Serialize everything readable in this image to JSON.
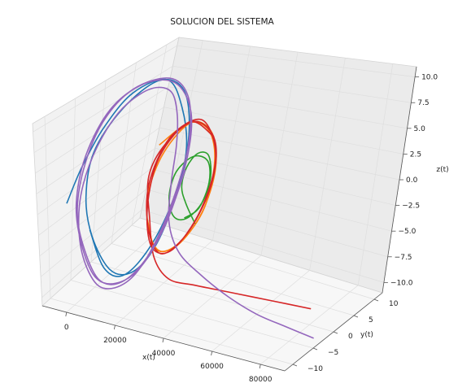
{
  "chart_data": {
    "type": "line",
    "projection": "3d",
    "title": "SOLUCION DEL SISTEMA",
    "xlabel": "x(t)",
    "ylabel": "y(t)",
    "zlabel": "z(t)",
    "xlim": [
      -10000,
      90000
    ],
    "ylim": [
      -12,
      12
    ],
    "zlim": [
      -11,
      11
    ],
    "xticks": [
      "0",
      "20000",
      "40000",
      "60000",
      "80000"
    ],
    "yticks": [
      "−10",
      "−5",
      "0",
      "5",
      "10"
    ],
    "zticks": [
      "−10.0",
      "−7.5",
      "−5.0",
      "−2.5",
      "0.0",
      "2.5",
      "5.0",
      "7.5",
      "10.0"
    ],
    "grid": true,
    "series": [
      {
        "color": "#1f77b4",
        "points": [
          [
            0,
            -11,
            1.5
          ],
          [
            2000,
            -9,
            5
          ],
          [
            4000,
            -6,
            8.5
          ],
          [
            6000,
            -2,
            11
          ],
          [
            8000,
            3,
            10.5
          ],
          [
            9000,
            6,
            6
          ],
          [
            9500,
            8,
            0
          ],
          [
            9000,
            7,
            -6
          ],
          [
            8000,
            4,
            -10
          ],
          [
            6000,
            0,
            -11
          ],
          [
            4000,
            -4,
            -9
          ],
          [
            2000,
            -7,
            -4
          ],
          [
            1500,
            -8,
            1
          ],
          [
            2500,
            -7,
            6
          ],
          [
            4500,
            -3,
            9.5
          ],
          [
            7000,
            2,
            10.8
          ],
          [
            8800,
            6,
            8
          ],
          [
            9500,
            8,
            2
          ],
          [
            9200,
            7.5,
            -4
          ],
          [
            7800,
            4,
            -9
          ],
          [
            5500,
            -1,
            -10.8
          ],
          [
            3500,
            -5,
            -8.5
          ],
          [
            2000,
            -7.5,
            -3
          ]
        ]
      },
      {
        "color": "#ff7f0e",
        "points": [
          [
            20000,
            -3,
            6
          ],
          [
            23000,
            1,
            7
          ],
          [
            25000,
            4,
            5
          ],
          [
            26000,
            5.5,
            1
          ],
          [
            25500,
            4.8,
            -4
          ],
          [
            23500,
            1.5,
            -6.5
          ],
          [
            21000,
            -2,
            -6.5
          ],
          [
            19500,
            -4,
            -3.5
          ],
          [
            19500,
            -4.5,
            1
          ],
          [
            21000,
            -2.5,
            5
          ],
          [
            23500,
            1.2,
            7
          ],
          [
            25500,
            4.5,
            4.5
          ],
          [
            26200,
            5.8,
            0
          ],
          [
            25200,
            4.5,
            -4.5
          ],
          [
            23000,
            0.8,
            -6.8
          ],
          [
            20500,
            -2.8,
            -6
          ],
          [
            19400,
            -4.4,
            -2
          ]
        ]
      },
      {
        "color": "#2ca02c",
        "points": [
          [
            38000,
            -4,
            -1.5
          ],
          [
            32000,
            -3,
            0
          ],
          [
            27000,
            -1.5,
            1
          ],
          [
            25500,
            0,
            2.5
          ],
          [
            26500,
            1.5,
            3.5
          ],
          [
            29000,
            2.5,
            3
          ],
          [
            30500,
            2.6,
            0.5
          ],
          [
            29500,
            1.8,
            -2
          ],
          [
            27000,
            0,
            -3.2
          ],
          [
            24500,
            -1.5,
            -2.5
          ],
          [
            23500,
            -2.2,
            0
          ],
          [
            24500,
            -1.5,
            2.6
          ],
          [
            27000,
            0.5,
            3.6
          ],
          [
            29500,
            2.2,
            2.5
          ],
          [
            30300,
            2.5,
            0
          ],
          [
            29000,
            1.5,
            -2.5
          ],
          [
            26500,
            -0.2,
            -3.1
          ]
        ]
      },
      {
        "color": "#d62728",
        "points": [
          [
            85000,
            -3,
            -8
          ],
          [
            70000,
            -3.5,
            -8
          ],
          [
            55000,
            -4,
            -8
          ],
          [
            40000,
            -4.5,
            -8
          ],
          [
            30000,
            -5,
            -7.8
          ],
          [
            23000,
            -4.6,
            -6
          ],
          [
            19500,
            -4,
            -2
          ],
          [
            19500,
            -4.5,
            3
          ],
          [
            21500,
            -2.5,
            6
          ],
          [
            24000,
            1.5,
            7
          ],
          [
            26000,
            5,
            3.5
          ],
          [
            26000,
            5.5,
            -1.5
          ],
          [
            24000,
            2.8,
            -5.8
          ],
          [
            21000,
            -1.5,
            -7
          ],
          [
            19400,
            -4,
            -3.5
          ],
          [
            19600,
            -4.5,
            2
          ],
          [
            22000,
            -2,
            6.5
          ],
          [
            24800,
            2.5,
            6.8
          ],
          [
            26200,
            5.5,
            1.5
          ],
          [
            25200,
            4.2,
            -4
          ],
          [
            22500,
            0,
            -7
          ],
          [
            20000,
            -3.5,
            -5.5
          ],
          [
            19400,
            -4.5,
            -0.5
          ],
          [
            20800,
            -3.2,
            4.8
          ],
          [
            23500,
            0.8,
            7.2
          ],
          [
            25800,
            4.8,
            4
          ]
        ]
      },
      {
        "color": "#9467bd",
        "points": [
          [
            90000,
            -5,
            -10
          ],
          [
            75000,
            -3,
            -10.5
          ],
          [
            60000,
            -1,
            -11
          ],
          [
            45000,
            1,
            -11
          ],
          [
            30000,
            3,
            -10.5
          ],
          [
            18000,
            4.5,
            -9.5
          ],
          [
            11000,
            5.5,
            -7
          ],
          [
            8000,
            6.5,
            -3
          ],
          [
            7000,
            7,
            1
          ],
          [
            7500,
            6,
            5
          ],
          [
            8500,
            4,
            8.5
          ],
          [
            9200,
            1,
            10.5
          ],
          [
            9000,
            -2,
            11
          ],
          [
            7500,
            -5,
            10
          ],
          [
            5000,
            -7.5,
            7
          ],
          [
            2500,
            -9,
            3
          ],
          [
            1500,
            -9.5,
            -1
          ],
          [
            2000,
            -9,
            -5.5
          ],
          [
            4000,
            -7,
            -9.5
          ],
          [
            6500,
            -4,
            -11
          ],
          [
            8500,
            0,
            -10.8
          ],
          [
            9800,
            4,
            -8
          ],
          [
            10200,
            7,
            -3
          ],
          [
            9800,
            8,
            2
          ],
          [
            8500,
            7,
            7
          ],
          [
            6500,
            4,
            10.2
          ],
          [
            4000,
            -1,
            11
          ],
          [
            2000,
            -5,
            9
          ],
          [
            1200,
            -8,
            5
          ],
          [
            1000,
            -9.5,
            0
          ],
          [
            1800,
            -8.5,
            -5
          ],
          [
            3500,
            -6,
            -9.5
          ],
          [
            6000,
            -2,
            -11.2
          ],
          [
            8500,
            2.5,
            -10
          ],
          [
            9900,
            6,
            -6
          ],
          [
            10300,
            8,
            -0.5
          ],
          [
            9700,
            7.5,
            5
          ],
          [
            8000,
            4.5,
            9.5
          ],
          [
            5500,
            0,
            11.2
          ],
          [
            3000,
            -4.5,
            10
          ],
          [
            1500,
            -8,
            6
          ],
          [
            900,
            -9.6,
            1
          ],
          [
            1400,
            -9,
            -4
          ],
          [
            3000,
            -6.8,
            -8.8
          ],
          [
            5200,
            -3,
            -11
          ],
          [
            7800,
            1.5,
            -10.8
          ],
          [
            9600,
            5.5,
            -7.5
          ],
          [
            10300,
            8,
            -2
          ]
        ]
      }
    ]
  }
}
